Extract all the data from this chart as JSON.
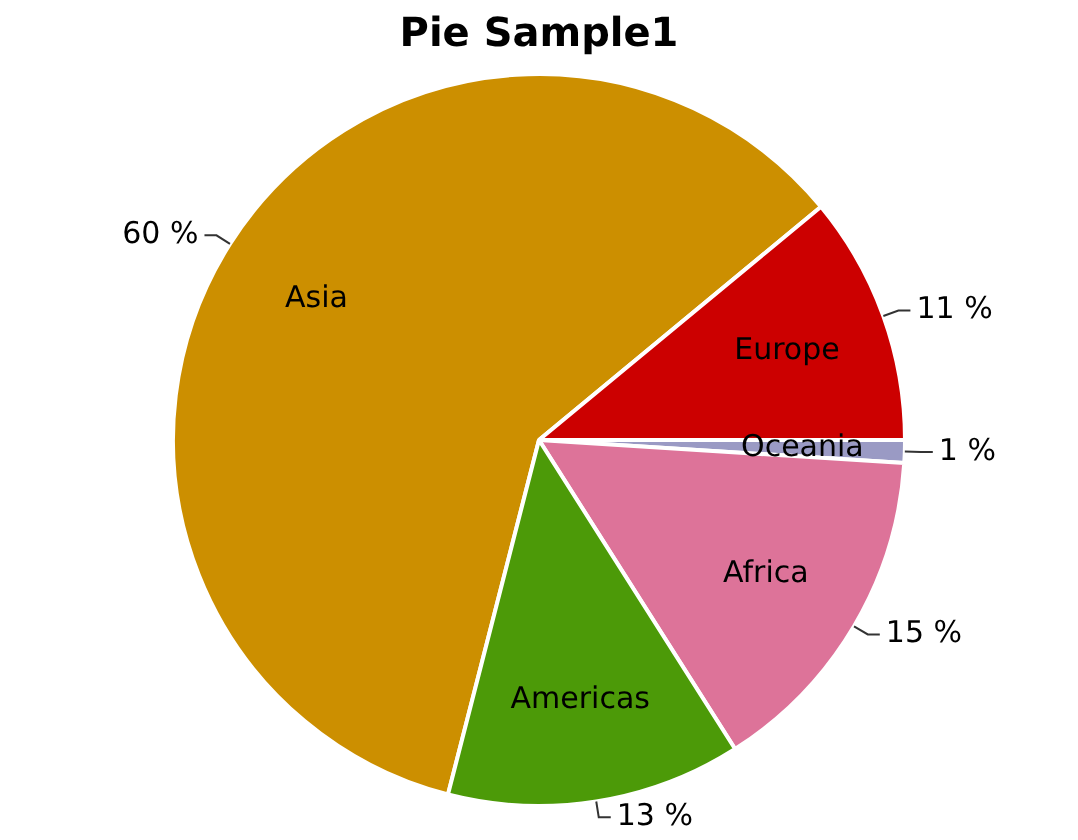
{
  "chart_data": {
    "type": "pie",
    "title": "Pie Sample1",
    "categories": [
      "Asia",
      "Europe",
      "Oceania",
      "Africa",
      "Americas"
    ],
    "values": [
      60,
      11,
      1,
      15,
      13
    ],
    "value_labels": [
      "60 %",
      "11 %",
      "1 %",
      "15 %",
      "13 %"
    ],
    "colors": [
      "#cc8f00",
      "#cc0000",
      "#9a9ac4",
      "#dd7399",
      "#4c9a08"
    ],
    "legend": false
  }
}
